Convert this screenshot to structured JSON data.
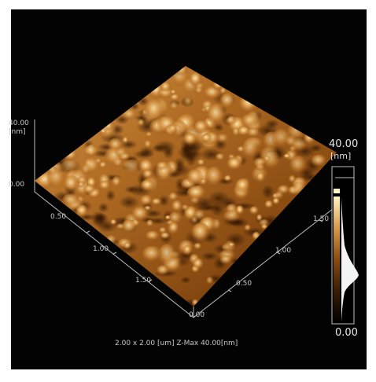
{
  "z_axis": {
    "max_label": "40.00",
    "unit": "[nm]",
    "zero_label": "0.00"
  },
  "x_axis": {
    "ticks": [
      "0.50",
      "1.00",
      "1.50"
    ]
  },
  "y_axis": {
    "ticks": [
      "0.00",
      "0.50",
      "1.00",
      "1.50"
    ]
  },
  "colorbar": {
    "top_label": "40.00",
    "unit": "[nm]",
    "bottom_label": "0.00"
  },
  "caption": "2.00 x 2.00 [um]  Z-Max 40.00[nm]",
  "colors": {
    "background": "#030303",
    "surface_dark": "#3a1c05",
    "surface_mid": "#a0601e",
    "surface_light": "#f2d79a"
  }
}
